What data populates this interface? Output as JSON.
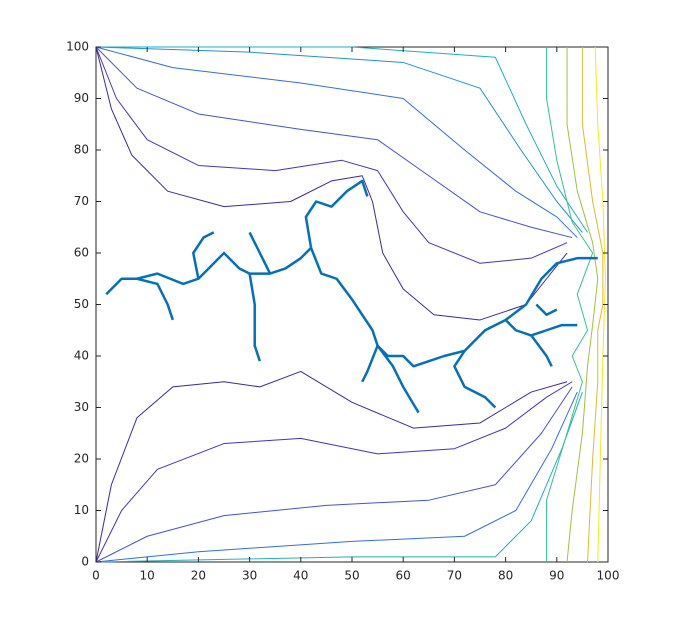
{
  "chart_data": {
    "type": "contour",
    "xlim": [
      0,
      100
    ],
    "ylim": [
      0,
      100
    ],
    "xticks": [
      0,
      10,
      20,
      30,
      40,
      50,
      60,
      70,
      80,
      90,
      100
    ],
    "yticks": [
      0,
      10,
      20,
      30,
      40,
      50,
      60,
      70,
      80,
      90,
      100
    ],
    "series": [
      {
        "color": "#3e26a8",
        "x": [
          0,
          3,
          7,
          14,
          25,
          38,
          46,
          52,
          54,
          56,
          60,
          66,
          75,
          84,
          88,
          92
        ],
        "y": [
          100,
          88,
          79,
          72,
          69,
          70,
          74,
          75,
          70,
          60,
          53,
          48,
          47,
          50,
          55,
          60
        ]
      },
      {
        "color": "#4233c8",
        "x": [
          0,
          4,
          10,
          20,
          35,
          48,
          55,
          60,
          65,
          75,
          85,
          92
        ],
        "y": [
          100,
          90,
          82,
          77,
          76,
          78,
          76,
          68,
          62,
          58,
          59,
          62
        ]
      },
      {
        "color": "#4150e6",
        "x": [
          0,
          8,
          20,
          40,
          55,
          65,
          75,
          85,
          93
        ],
        "y": [
          100,
          92,
          87,
          84,
          82,
          75,
          68,
          65,
          63
        ]
      },
      {
        "color": "#2f6df0",
        "x": [
          0,
          15,
          40,
          60,
          72,
          82,
          90,
          94
        ],
        "y": [
          100,
          96,
          93,
          90,
          80,
          72,
          67,
          63
        ]
      },
      {
        "color": "#1f90df",
        "x": [
          0,
          30,
          60,
          75,
          83,
          90,
          95
        ],
        "y": [
          100,
          99,
          97,
          92,
          80,
          70,
          64
        ]
      },
      {
        "color": "#1ab0c8",
        "x": [
          0,
          50,
          78,
          84,
          90,
          96
        ],
        "y": [
          100,
          100,
          98,
          85,
          73,
          64
        ]
      },
      {
        "color": "#3e26a8",
        "x": [
          0,
          3,
          8,
          15,
          25,
          32,
          40,
          50,
          62,
          75,
          80,
          85,
          92
        ],
        "y": [
          0,
          15,
          28,
          34,
          35,
          34,
          37,
          31,
          26,
          27,
          30,
          33,
          35
        ]
      },
      {
        "color": "#4233c8",
        "x": [
          0,
          5,
          12,
          25,
          40,
          55,
          70,
          80,
          88,
          93
        ],
        "y": [
          0,
          10,
          18,
          23,
          24,
          21,
          22,
          26,
          32,
          35
        ]
      },
      {
        "color": "#4150e6",
        "x": [
          0,
          10,
          25,
          45,
          65,
          78,
          87,
          93
        ],
        "y": [
          0,
          5,
          9,
          11,
          12,
          15,
          25,
          34
        ]
      },
      {
        "color": "#2f6df0",
        "x": [
          0,
          20,
          50,
          72,
          82,
          89,
          94
        ],
        "y": [
          0,
          2,
          4,
          5,
          10,
          22,
          33
        ]
      },
      {
        "color": "#1ab0c8",
        "x": [
          0,
          50,
          78,
          85,
          91,
          95
        ],
        "y": [
          0,
          1,
          1,
          8,
          22,
          33
        ]
      },
      {
        "color": "#31c48f",
        "x": [
          88,
          88,
          90,
          93,
          97,
          94,
          96,
          93,
          95,
          92,
          88,
          88
        ],
        "y": [
          100,
          90,
          78,
          66,
          60,
          52,
          45,
          40,
          35,
          25,
          12,
          0
        ]
      },
      {
        "color": "#9dc43a",
        "x": [
          92,
          92,
          94,
          97,
          98,
          97,
          96,
          95,
          93,
          92
        ],
        "y": [
          100,
          85,
          72,
          62,
          55,
          46,
          38,
          25,
          10,
          0
        ]
      },
      {
        "color": "#e0ba30",
        "x": [
          95,
          95,
          97,
          99,
          99,
          98,
          98,
          97,
          96
        ],
        "y": [
          100,
          85,
          70,
          60,
          50,
          45,
          35,
          20,
          0
        ]
      },
      {
        "color": "#f9e81a",
        "x": [
          97.5,
          98,
          99,
          99.5,
          99,
          98.5,
          98
        ],
        "y": [
          100,
          85,
          70,
          55,
          40,
          20,
          0
        ]
      }
    ],
    "tree": {
      "color": "#0072bd",
      "branches": [
        {
          "x": [
            2,
            5,
            8,
            12,
            14,
            15
          ],
          "y": [
            52,
            55,
            55,
            54,
            50,
            47
          ]
        },
        {
          "x": [
            8,
            12,
            17,
            20,
            22,
            24,
            25,
            28,
            30,
            34,
            37,
            40,
            42
          ],
          "y": [
            55,
            56,
            54,
            55,
            57,
            59,
            60,
            57,
            56,
            56,
            57,
            59,
            61
          ]
        },
        {
          "x": [
            30,
            31,
            31,
            31,
            32
          ],
          "y": [
            56,
            50,
            46,
            42,
            39
          ]
        },
        {
          "x": [
            42,
            44,
            47,
            50,
            52,
            54,
            55,
            57,
            60,
            62,
            65,
            68,
            72,
            74,
            76,
            80,
            82,
            85,
            88,
            91,
            94
          ],
          "y": [
            61,
            56,
            55,
            51,
            48,
            45,
            42,
            40,
            40,
            38,
            39,
            40,
            41,
            43,
            45,
            47,
            45,
            44,
            45,
            46,
            46
          ]
        },
        {
          "x": [
            80,
            84,
            87,
            90,
            94,
            98
          ],
          "y": [
            47,
            50,
            55,
            58,
            59,
            59
          ]
        },
        {
          "x": [
            55,
            58,
            60,
            63
          ],
          "y": [
            42,
            38,
            34,
            29
          ]
        },
        {
          "x": [
            72,
            70,
            72,
            76,
            78
          ],
          "y": [
            41,
            38,
            34,
            32,
            30
          ]
        },
        {
          "x": [
            42,
            41,
            43,
            46,
            49,
            52,
            53
          ],
          "y": [
            61,
            67,
            70,
            69,
            72,
            74,
            71
          ]
        },
        {
          "x": [
            20,
            19,
            21,
            23
          ],
          "y": [
            55,
            60,
            63,
            64
          ]
        },
        {
          "x": [
            34,
            32,
            30
          ],
          "y": [
            56,
            60,
            64
          ]
        },
        {
          "x": [
            86,
            88,
            90
          ],
          "y": [
            50,
            48,
            49
          ]
        },
        {
          "x": [
            85,
            88,
            89
          ],
          "y": [
            44,
            40,
            38
          ]
        },
        {
          "x": [
            55,
            53,
            52
          ],
          "y": [
            42,
            37,
            35
          ]
        }
      ]
    }
  }
}
